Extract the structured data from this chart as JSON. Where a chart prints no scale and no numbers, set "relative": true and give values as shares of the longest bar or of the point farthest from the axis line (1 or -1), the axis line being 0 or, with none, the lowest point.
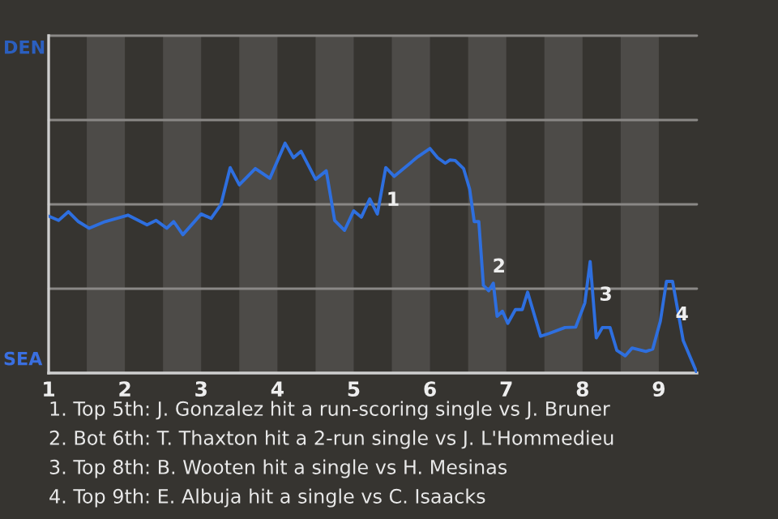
{
  "chart_data": {
    "type": "line",
    "relative": true,
    "x": [
      1.0,
      1.13,
      1.26,
      1.39,
      1.53,
      1.74,
      2.04,
      2.29,
      2.41,
      2.55,
      2.64,
      2.76,
      3.0,
      3.13,
      3.26,
      3.38,
      3.5,
      3.71,
      3.9,
      4.1,
      4.21,
      4.31,
      4.5,
      4.64,
      4.75,
      4.88,
      5.0,
      5.1,
      5.21,
      5.31,
      5.42,
      5.53,
      5.84,
      6.0,
      6.1,
      6.2,
      6.26,
      6.33,
      6.44,
      6.52,
      6.58,
      6.64,
      6.7,
      6.77,
      6.83,
      6.88,
      6.95,
      7.02,
      7.12,
      7.21,
      7.28,
      7.45,
      7.56,
      7.77,
      7.91,
      8.03,
      8.1,
      8.18,
      8.26,
      8.36,
      8.45,
      8.56,
      8.65,
      8.83,
      8.92,
      9.02,
      9.1,
      9.18,
      9.32,
      9.5
    ],
    "series": [
      {
        "color": "#2e6fdf",
        "values": [
          0.683,
          0.664,
          0.702,
          0.659,
          0.63,
          0.659,
          0.687,
          0.645,
          0.664,
          0.63,
          0.659,
          0.602,
          0.692,
          0.673,
          0.734,
          0.894,
          0.819,
          0.89,
          0.847,
          1,
          0.937,
          0.965,
          0.843,
          0.88,
          0.664,
          0.621,
          0.706,
          0.678,
          0.758,
          0.692,
          0.894,
          0.856,
          0.941,
          0.977,
          0.937,
          0.913,
          0.927,
          0.925,
          0.89,
          0.8,
          0.659,
          0.659,
          0.382,
          0.358,
          0.391,
          0.247,
          0.269,
          0.216,
          0.276,
          0.276,
          0.352,
          0.16,
          0.172,
          0.198,
          0.2,
          0.305,
          0.485,
          0.153,
          0.198,
          0.198,
          0.098,
          0.075,
          0.109,
          0.094,
          0.104,
          0.226,
          0.399,
          0.399,
          0.141,
          0
        ]
      }
    ],
    "xlim": [
      1,
      9.5
    ],
    "xticks": [
      1,
      2,
      3,
      4,
      5,
      6,
      7,
      8,
      9
    ],
    "ref_lines": [
      {
        "axis": "y",
        "value": 0.367,
        "color": "#8a8886"
      },
      {
        "axis": "y",
        "value": 0.734,
        "color": "#8a8886"
      },
      {
        "axis": "y",
        "value": 1.101,
        "color": "#8a8886"
      },
      {
        "axis": "y",
        "value": 1.468,
        "color": "#8a8886"
      }
    ],
    "bands": [
      {
        "axis": "x",
        "from": 1.5,
        "to": 2,
        "color": "#4d4b48"
      },
      {
        "axis": "x",
        "from": 2.5,
        "to": 3,
        "color": "#4d4b48"
      },
      {
        "axis": "x",
        "from": 3.5,
        "to": 4,
        "color": "#4d4b48"
      },
      {
        "axis": "x",
        "from": 4.5,
        "to": 5,
        "color": "#4d4b48"
      },
      {
        "axis": "x",
        "from": 5.5,
        "to": 6,
        "color": "#4d4b48"
      },
      {
        "axis": "x",
        "from": 6.5,
        "to": 7,
        "color": "#4d4b48"
      },
      {
        "axis": "x",
        "from": 7.5,
        "to": 8,
        "color": "#4d4b48"
      },
      {
        "axis": "x",
        "from": 8.5,
        "to": 9,
        "color": "#4d4b48"
      }
    ],
    "annotations": [
      "DEN",
      "SEA",
      {
        "text": "1",
        "x": 5.31,
        "y": 0.692
      },
      {
        "text": "2",
        "x": 6.7,
        "y": 0.382
      },
      {
        "text": "3",
        "x": 8.1,
        "y": 0.485
      },
      {
        "text": "4",
        "x": 9.1,
        "y": 0.399
      },
      "1. Top 5th: J. Gonzalez hit a run-scoring single vs J. Bruner",
      "2. Bot 6th: T. Thaxton hit a 2-run single vs J. L'Hommedieu",
      "3. Top 8th: B. Wooten hit a single vs H. Mesinas",
      "4. Top 9th: E. Albuja hit a single vs C. Isaacks"
    ]
  }
}
